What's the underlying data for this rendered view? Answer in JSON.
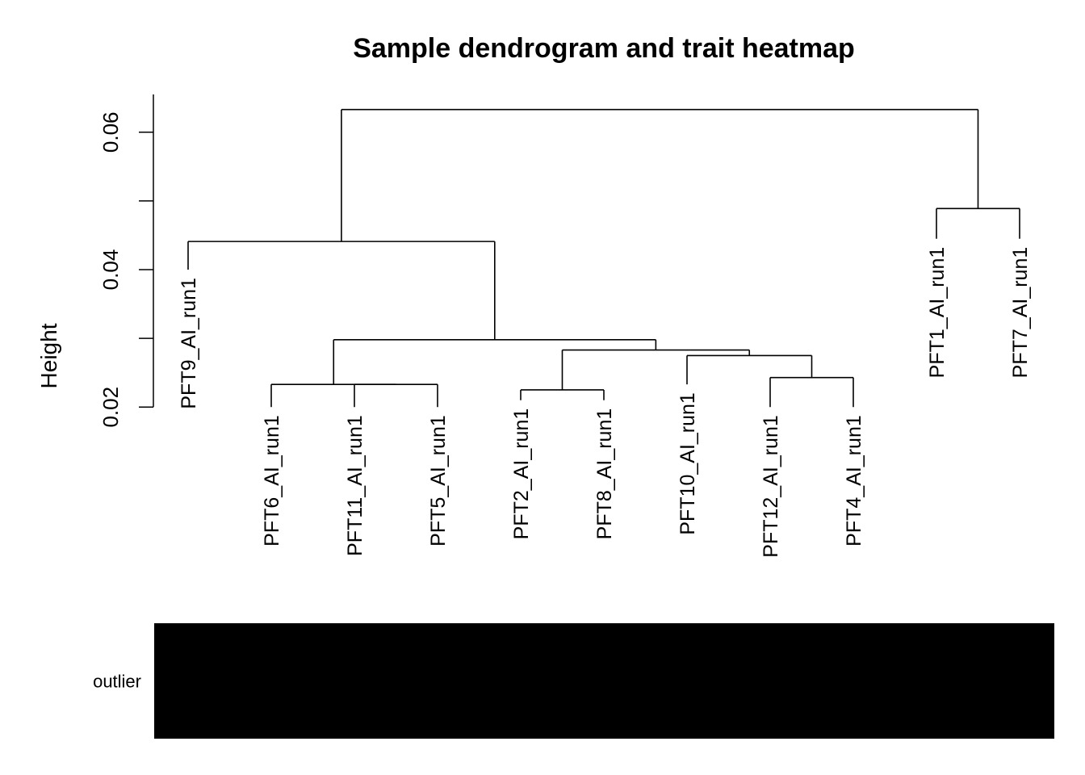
{
  "chart_data": {
    "type": "dendrogram",
    "title": "Sample dendrogram and trait heatmap",
    "ylabel": "Height",
    "yticks": [
      0.02,
      0.04,
      0.06
    ],
    "ytick_labels": [
      "0.02",
      "0.04",
      "0.06"
    ],
    "ylim": [
      0.0185,
      0.0655
    ],
    "leaves": [
      {
        "label": "PFT9_AI_run1",
        "height": 0.04
      },
      {
        "label": "PFT6_AI_run1",
        "height": 0.02
      },
      {
        "label": "PFT11_AI_run1",
        "height": 0.02
      },
      {
        "label": "PFT5_AI_run1",
        "height": 0.02
      },
      {
        "label": "PFT2_AI_run1",
        "height": 0.021
      },
      {
        "label": "PFT8_AI_run1",
        "height": 0.021
      },
      {
        "label": "PFT10_AI_run1",
        "height": 0.0233
      },
      {
        "label": "PFT12_AI_run1",
        "height": 0.02
      },
      {
        "label": "PFT4_AI_run1",
        "height": 0.02
      },
      {
        "label": "PFT1_AI_run1",
        "height": 0.0445
      },
      {
        "label": "PFT7_AI_run1",
        "height": 0.0445
      }
    ],
    "merges": [
      {
        "id": "m1",
        "left": "L2",
        "right": "L3",
        "height": 0.0233
      },
      {
        "id": "m2",
        "left": "L1",
        "right": "m1",
        "height": 0.0233
      },
      {
        "id": "m3",
        "left": "L4",
        "right": "L5",
        "height": 0.0225
      },
      {
        "id": "m4",
        "left": "L7",
        "right": "L8",
        "height": 0.0243
      },
      {
        "id": "m5",
        "left": "L6",
        "right": "m4",
        "height": 0.0275
      },
      {
        "id": "m6",
        "left": "m3",
        "right": "m5",
        "height": 0.0283
      },
      {
        "id": "m7",
        "left": "m2",
        "right": "m6",
        "height": 0.0298
      },
      {
        "id": "m8",
        "left": "L0",
        "right": "m7",
        "height": 0.0441
      },
      {
        "id": "m9",
        "left": "L9",
        "right": "L10",
        "height": 0.0489
      },
      {
        "id": "m10",
        "left": "m8",
        "right": "m9",
        "height": 0.0633
      }
    ],
    "traits": [
      {
        "name": "outlier",
        "color": "#000000"
      }
    ]
  }
}
